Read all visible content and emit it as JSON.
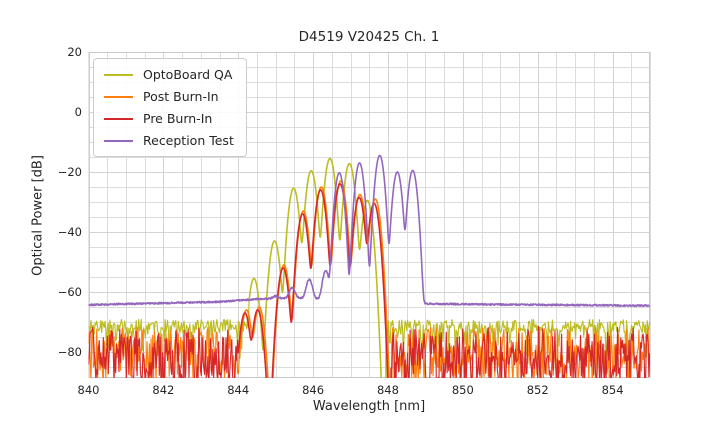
{
  "chart_data": {
    "type": "line",
    "title": "D4519 V20425 Ch. 1",
    "xlabel": "Wavelength [nm]",
    "ylabel": "Optical Power [dB]",
    "xlim": [
      840,
      855
    ],
    "ylim": [
      -88.7,
      20
    ],
    "x_major_ticks": [
      840,
      842,
      844,
      846,
      848,
      850,
      852,
      854
    ],
    "x_minor_step": 0.5,
    "y_major_ticks": [
      20,
      0,
      -20,
      -40,
      -60,
      -80
    ],
    "y_minor_step": 5,
    "grid": true,
    "legend_position": "upper left",
    "series": [
      {
        "name": "OptoBoard QA",
        "color": "#bcbd22",
        "mode_width_nm": 0.1,
        "modes_nm_dB": [
          [
            843.95,
            -64.5
          ],
          [
            844.42,
            -55.5
          ],
          [
            844.97,
            -43.0
          ],
          [
            845.48,
            -25.4
          ],
          [
            845.95,
            -19.6
          ],
          [
            846.45,
            -15.5
          ],
          [
            846.97,
            -17.2
          ],
          [
            847.45,
            -29.5
          ]
        ],
        "noise_regions": [
          [
            840.0,
            844.28
          ],
          [
            847.95,
            855.0
          ]
        ],
        "noise": {
          "style": "band",
          "base": -69.2,
          "spread": 4.5,
          "spike_chance": 0.22,
          "spike_extra": 10,
          "seed": 11
        }
      },
      {
        "name": "Post Burn-In",
        "color": "#ff7f0e",
        "mode_width_nm": 0.1,
        "modes_nm_dB": [
          [
            844.22,
            -66.0
          ],
          [
            844.56,
            -65.0
          ],
          [
            845.22,
            -51.0
          ],
          [
            845.74,
            -33.0
          ],
          [
            846.22,
            -25.0
          ],
          [
            846.74,
            -23.0
          ],
          [
            847.25,
            -27.5
          ],
          [
            847.66,
            -29.0
          ]
        ],
        "noise_regions": [
          [
            840.0,
            844.02
          ],
          [
            848.1,
            855.0
          ]
        ],
        "noise": {
          "style": "bars",
          "base": -71.8,
          "spread": 19,
          "pow": 1.0,
          "seed": 12
        }
      },
      {
        "name": "Pre Burn-In",
        "color": "#d62728",
        "mode_width_nm": 0.1,
        "modes_nm_dB": [
          [
            844.18,
            -67.0
          ],
          [
            844.52,
            -66.0
          ],
          [
            845.2,
            -52.0
          ],
          [
            845.72,
            -34.0
          ],
          [
            846.2,
            -26.0
          ],
          [
            846.72,
            -24.0
          ],
          [
            847.23,
            -28.5
          ],
          [
            847.63,
            -30.5
          ]
        ],
        "noise_regions": [
          [
            840.0,
            844.0
          ],
          [
            848.08,
            855.0
          ]
        ],
        "noise": {
          "style": "bars",
          "base": -71.5,
          "spread": 20,
          "pow": 0.8,
          "seed": 13
        }
      },
      {
        "name": "Reception Test",
        "color": "#9467bd",
        "mode_width_nm": 0.09,
        "modes_nm_dB": [
          [
            845.0,
            -69.0
          ],
          [
            845.44,
            -61.0
          ],
          [
            845.9,
            -57.0
          ],
          [
            846.34,
            -53.5
          ],
          [
            846.7,
            -20.3
          ],
          [
            847.24,
            -17.0
          ],
          [
            847.78,
            -14.5
          ],
          [
            848.25,
            -20.0
          ],
          [
            848.66,
            -19.5
          ]
        ],
        "pedestal_nm_dB": [
          [
            840.0,
            -64.3
          ],
          [
            843.5,
            -63.3
          ],
          [
            844.6,
            -62.3
          ],
          [
            845.6,
            -62.0
          ],
          [
            846.6,
            -62.5
          ],
          [
            849.2,
            -64.0
          ],
          [
            855.0,
            -64.6
          ]
        ],
        "noise_regions": [],
        "noise": {
          "style": "jitter",
          "amp": 0.55,
          "seed": 14
        }
      }
    ]
  }
}
